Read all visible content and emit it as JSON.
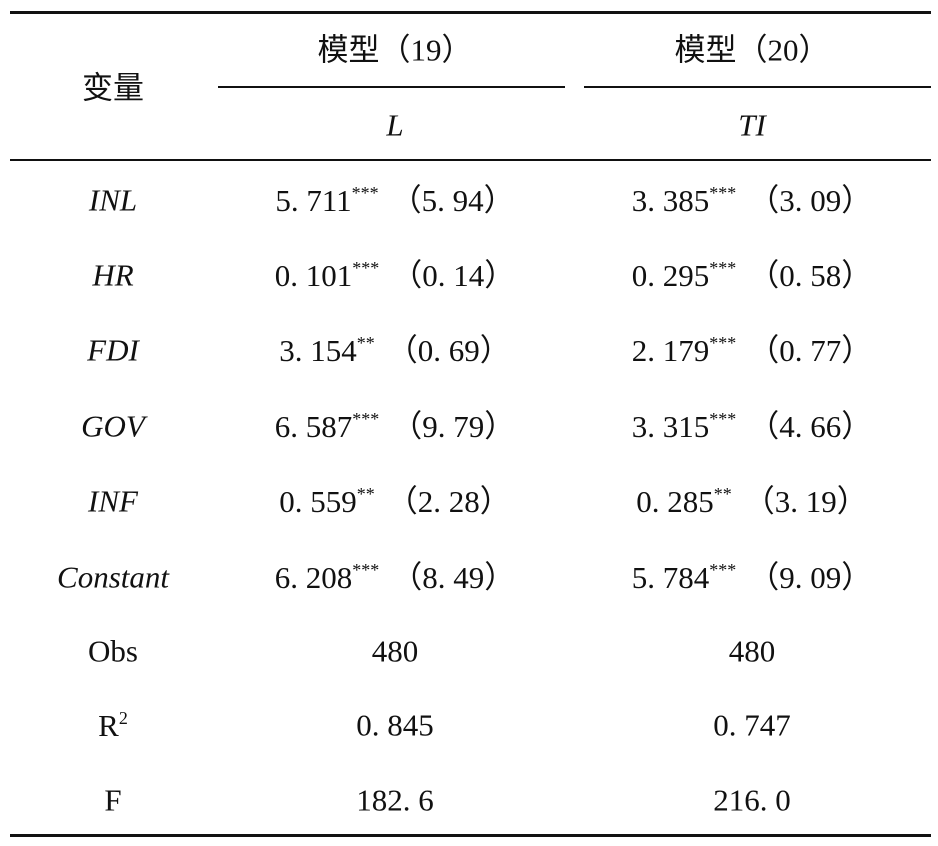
{
  "header": {
    "variable": "变量",
    "models": [
      {
        "title": "模型（19）",
        "dependent": "L"
      },
      {
        "title": "模型（20）",
        "dependent": "TI"
      }
    ]
  },
  "table": {
    "rows": [
      {
        "label": "INL",
        "italic": true,
        "cells": [
          {
            "coef": "5. 711",
            "stars": "***",
            "t": "（5. 94）"
          },
          {
            "coef": "3. 385",
            "stars": "***",
            "t": "（3. 09）"
          }
        ]
      },
      {
        "label": "HR",
        "italic": true,
        "cells": [
          {
            "coef": "0. 101",
            "stars": "***",
            "t": "（0. 14）"
          },
          {
            "coef": "0. 295",
            "stars": "***",
            "t": "（0. 58）"
          }
        ]
      },
      {
        "label": "FDI",
        "italic": true,
        "cells": [
          {
            "coef": "3. 154",
            "stars": "**",
            "t": "（0. 69）"
          },
          {
            "coef": "2. 179",
            "stars": "***",
            "t": "（0. 77）"
          }
        ]
      },
      {
        "label": "GOV",
        "italic": true,
        "cells": [
          {
            "coef": "6. 587",
            "stars": "***",
            "t": "（9. 79）"
          },
          {
            "coef": "3. 315",
            "stars": "***",
            "t": "（4. 66）"
          }
        ]
      },
      {
        "label": "INF",
        "italic": true,
        "cells": [
          {
            "coef": "0. 559",
            "stars": "**",
            "t": "（2. 28）"
          },
          {
            "coef": "0. 285",
            "stars": "**",
            "t": "（3. 19）"
          }
        ]
      },
      {
        "label": "Constant",
        "italic": true,
        "cells": [
          {
            "coef": "6. 208",
            "stars": "***",
            "t": "（8. 49）"
          },
          {
            "coef": "5. 784",
            "stars": "***",
            "t": "（9. 09）"
          }
        ]
      },
      {
        "label": "Obs",
        "italic": false,
        "cells": [
          {
            "coef": "480"
          },
          {
            "coef": "480"
          }
        ]
      },
      {
        "label": "R",
        "label_sup": "2",
        "italic": false,
        "cells": [
          {
            "coef": "0. 845"
          },
          {
            "coef": "0. 747"
          }
        ]
      },
      {
        "label": "F",
        "italic": false,
        "cells": [
          {
            "coef": "182. 6"
          },
          {
            "coef": "216. 0"
          }
        ]
      }
    ]
  }
}
